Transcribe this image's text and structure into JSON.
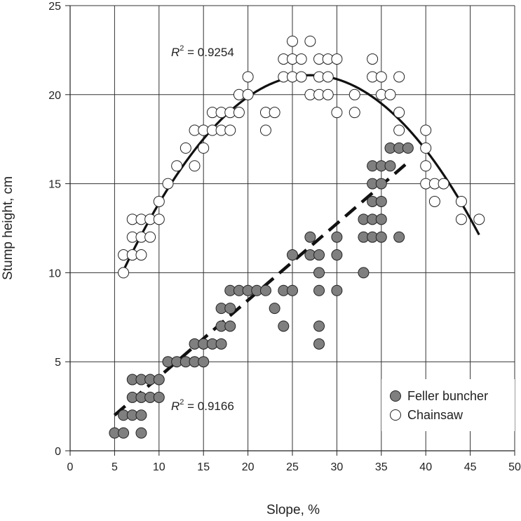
{
  "chart_data": {
    "type": "scatter",
    "title": "",
    "xlabel": "Slope, %",
    "ylabel": "Stump height, cm",
    "xlim": [
      0,
      50
    ],
    "ylim": [
      0,
      25
    ],
    "xticks": [
      0,
      5,
      10,
      15,
      20,
      25,
      30,
      35,
      40,
      45,
      50
    ],
    "yticks": [
      0,
      5,
      10,
      15,
      20,
      25
    ],
    "grid": true,
    "legend_position": "bottom-right",
    "series": [
      {
        "name": "Feller buncher",
        "marker_color": "#7f7f7f",
        "points": [
          [
            5,
            1
          ],
          [
            6,
            1
          ],
          [
            6,
            2
          ],
          [
            7,
            2
          ],
          [
            7,
            3
          ],
          [
            7,
            4
          ],
          [
            8,
            1
          ],
          [
            8,
            2
          ],
          [
            8,
            3
          ],
          [
            8,
            4
          ],
          [
            9,
            3
          ],
          [
            9,
            4
          ],
          [
            10,
            3
          ],
          [
            10,
            4
          ],
          [
            11,
            5
          ],
          [
            12,
            5
          ],
          [
            13,
            5
          ],
          [
            14,
            5
          ],
          [
            14,
            6
          ],
          [
            15,
            5
          ],
          [
            15,
            6
          ],
          [
            16,
            6
          ],
          [
            17,
            6
          ],
          [
            17,
            7
          ],
          [
            17,
            8
          ],
          [
            18,
            7
          ],
          [
            18,
            8
          ],
          [
            18,
            9
          ],
          [
            19,
            9
          ],
          [
            20,
            9
          ],
          [
            21,
            9
          ],
          [
            22,
            9
          ],
          [
            23,
            8
          ],
          [
            24,
            7
          ],
          [
            24,
            9
          ],
          [
            25,
            9
          ],
          [
            25,
            11
          ],
          [
            27,
            11
          ],
          [
            27,
            12
          ],
          [
            28,
            6
          ],
          [
            28,
            7
          ],
          [
            28,
            9
          ],
          [
            28,
            10
          ],
          [
            28,
            11
          ],
          [
            30,
            9
          ],
          [
            30,
            11
          ],
          [
            30,
            12
          ],
          [
            33,
            10
          ],
          [
            33,
            12
          ],
          [
            33,
            13
          ],
          [
            34,
            12
          ],
          [
            34,
            13
          ],
          [
            34,
            14
          ],
          [
            34,
            15
          ],
          [
            34,
            16
          ],
          [
            35,
            12
          ],
          [
            35,
            13
          ],
          [
            35,
            14
          ],
          [
            35,
            15
          ],
          [
            35,
            16
          ],
          [
            36,
            16
          ],
          [
            36,
            17
          ],
          [
            37,
            12
          ],
          [
            37,
            17
          ],
          [
            38,
            17
          ]
        ],
        "fit": {
          "kind": "linear",
          "x_range": [
            5,
            38
          ],
          "y_range": [
            2,
            16.2
          ],
          "r2_label": "R² = 0.9166"
        }
      },
      {
        "name": "Chainsaw",
        "marker_color": "#ffffff",
        "points": [
          [
            6,
            10
          ],
          [
            6,
            11
          ],
          [
            7,
            11
          ],
          [
            7,
            12
          ],
          [
            7,
            13
          ],
          [
            8,
            11
          ],
          [
            8,
            12
          ],
          [
            8,
            13
          ],
          [
            9,
            12
          ],
          [
            9,
            13
          ],
          [
            10,
            13
          ],
          [
            10,
            14
          ],
          [
            11,
            15
          ],
          [
            12,
            16
          ],
          [
            13,
            17
          ],
          [
            14,
            16
          ],
          [
            14,
            18
          ],
          [
            15,
            17
          ],
          [
            15,
            18
          ],
          [
            16,
            18
          ],
          [
            16,
            19
          ],
          [
            17,
            18
          ],
          [
            17,
            19
          ],
          [
            18,
            18
          ],
          [
            18,
            19
          ],
          [
            19,
            19
          ],
          [
            19,
            20
          ],
          [
            20,
            20
          ],
          [
            20,
            21
          ],
          [
            22,
            18
          ],
          [
            22,
            19
          ],
          [
            23,
            19
          ],
          [
            24,
            21
          ],
          [
            24,
            22
          ],
          [
            25,
            21
          ],
          [
            25,
            22
          ],
          [
            25,
            23
          ],
          [
            26,
            21
          ],
          [
            26,
            22
          ],
          [
            27,
            20
          ],
          [
            27,
            23
          ],
          [
            28,
            20
          ],
          [
            28,
            21
          ],
          [
            28,
            22
          ],
          [
            29,
            20
          ],
          [
            29,
            21
          ],
          [
            29,
            22
          ],
          [
            30,
            19
          ],
          [
            30,
            22
          ],
          [
            32,
            19
          ],
          [
            32,
            20
          ],
          [
            34,
            21
          ],
          [
            34,
            22
          ],
          [
            35,
            20
          ],
          [
            35,
            21
          ],
          [
            36,
            20
          ],
          [
            37,
            18
          ],
          [
            37,
            19
          ],
          [
            37,
            21
          ],
          [
            40,
            15
          ],
          [
            40,
            16
          ],
          [
            40,
            17
          ],
          [
            40,
            18
          ],
          [
            41,
            14
          ],
          [
            41,
            15
          ],
          [
            42,
            15
          ],
          [
            44,
            13
          ],
          [
            44,
            14
          ],
          [
            46,
            13
          ]
        ],
        "fit": {
          "kind": "quadratic",
          "x_range": [
            6,
            46
          ],
          "coefficients": {
            "a": -0.02485,
            "b": 1.3422,
            "c": 2.97
          },
          "r2_label": "R² = 0.9254"
        }
      }
    ],
    "annotations": {
      "r2_chainsaw": {
        "prefix": "R",
        "sup": "2",
        "text": " = 0.9254"
      },
      "r2_feller": {
        "prefix": "R",
        "sup": "2",
        "text": " = 0.9166"
      }
    }
  }
}
